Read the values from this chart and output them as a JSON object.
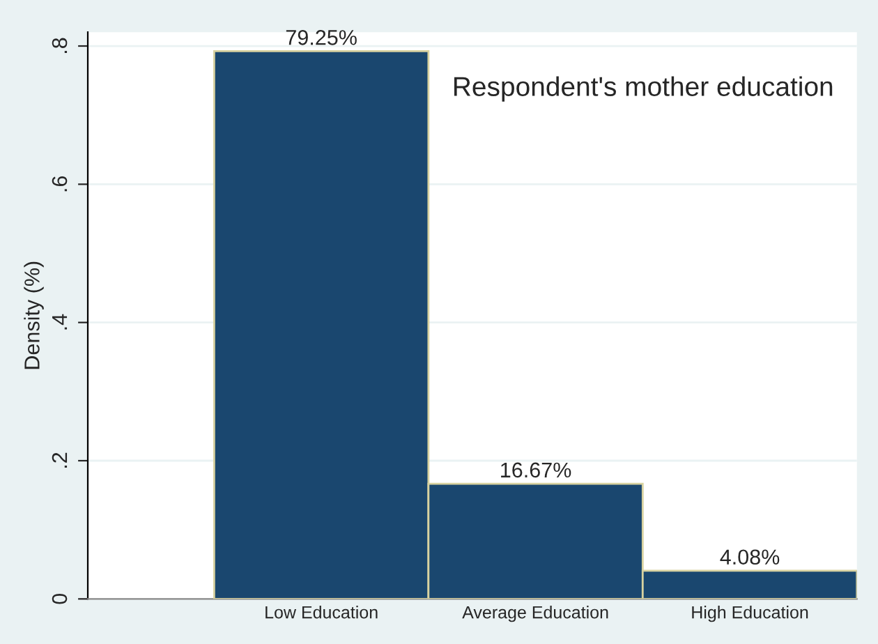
{
  "chart_data": {
    "type": "bar",
    "title": "Respondent's mother education",
    "ylabel": "Density (%)",
    "categories": [
      "Low Education",
      "Average Education",
      "High Education"
    ],
    "values": [
      0.7925,
      0.1667,
      0.0408
    ],
    "value_labels": [
      "79.25%",
      "16.67%",
      "4.08%"
    ],
    "color": "#1a476f",
    "ylim": [
      0,
      0.82
    ],
    "yticks": [
      {
        "value": 0,
        "label": "0"
      },
      {
        "value": 0.2,
        "label": ".2"
      },
      {
        "value": 0.4,
        "label": ".4"
      },
      {
        "value": 0.6,
        "label": ".6"
      },
      {
        "value": 0.8,
        "label": ".8"
      }
    ],
    "grid": "y"
  }
}
